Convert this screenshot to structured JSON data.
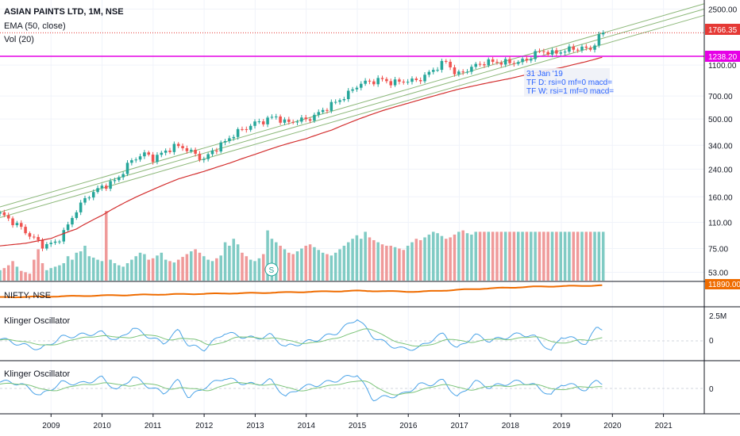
{
  "colors": {
    "up": "#26a69a",
    "down": "#ef5350",
    "vol_up": "#80cbc4",
    "vol_down": "#ef9a9a",
    "ema": "#d32f2f",
    "channel": "#8db87a",
    "price_line": "#e53935",
    "magenta": "#e600e6",
    "nifty": "#ef6c00",
    "klinger": "#4aa3e8",
    "signal": "#7cc47a",
    "grid": "#f0f3fa",
    "axis": "#131722"
  },
  "header": {
    "title": "ASIAN PAINTS LTD, 1M, NSE",
    "ema_label": "EMA (50, close)",
    "vol_label": "Vol (20)"
  },
  "price_tags": {
    "last": "1766.35",
    "level": "1238.20"
  },
  "tooltip": {
    "date": "31 Jan '19",
    "tf_d": "TF D: rsi=0 mf=0 macd=",
    "tf_w": "TF W: rsi=1 mf=0 macd="
  },
  "volume_marker": "S",
  "nifty": {
    "label": "NIFTY, NSE",
    "value": "11890.00"
  },
  "klinger_1": {
    "label": "Klinger Oscillator",
    "ticks": [
      "2.5M",
      "0"
    ]
  },
  "klinger_2": {
    "label": "Klinger Oscillator",
    "ticks": [
      "0"
    ]
  },
  "chart_data": {
    "type": "candlestick",
    "title": "ASIAN PAINTS LTD, 1M, NSE",
    "scale": "log",
    "ylim": [
      48,
      2600
    ],
    "y_ticks": [
      "2500.00",
      "1100.00",
      "700.00",
      "500.00",
      "340.00",
      "240.00",
      "160.00",
      "110.00",
      "75.00",
      "53.00"
    ],
    "y_tick_values": [
      2500,
      1100,
      700,
      500,
      340,
      240,
      160,
      110,
      75,
      53
    ],
    "x_ticks": [
      "2009",
      "2010",
      "2011",
      "2012",
      "2013",
      "2014",
      "2015",
      "2016",
      "2017",
      "2018",
      "2019",
      "2020",
      "2021"
    ],
    "x_range_years": [
      2008.0,
      2021.8
    ],
    "series_anchor_close": [
      [
        2008.0,
        125
      ],
      [
        2008.3,
        108
      ],
      [
        2008.6,
        90
      ],
      [
        2008.85,
        78
      ],
      [
        2009.1,
        82
      ],
      [
        2009.3,
        100
      ],
      [
        2009.5,
        132
      ],
      [
        2009.75,
        165
      ],
      [
        2010.0,
        185
      ],
      [
        2010.3,
        205
      ],
      [
        2010.5,
        255
      ],
      [
        2010.7,
        290
      ],
      [
        2010.85,
        300
      ],
      [
        2011.0,
        280
      ],
      [
        2011.2,
        305
      ],
      [
        2011.4,
        335
      ],
      [
        2011.6,
        330
      ],
      [
        2011.8,
        300
      ],
      [
        2012.0,
        275
      ],
      [
        2012.2,
        320
      ],
      [
        2012.4,
        355
      ],
      [
        2012.6,
        405
      ],
      [
        2012.8,
        435
      ],
      [
        2013.0,
        470
      ],
      [
        2013.2,
        490
      ],
      [
        2013.4,
        520
      ],
      [
        2013.6,
        470
      ],
      [
        2013.8,
        490
      ],
      [
        2014.0,
        495
      ],
      [
        2014.2,
        530
      ],
      [
        2014.4,
        590
      ],
      [
        2014.6,
        645
      ],
      [
        2014.8,
        710
      ],
      [
        2015.0,
        820
      ],
      [
        2015.2,
        860
      ],
      [
        2015.5,
        890
      ],
      [
        2015.7,
        845
      ],
      [
        2015.9,
        875
      ],
      [
        2016.1,
        870
      ],
      [
        2016.3,
        920
      ],
      [
        2016.6,
        1090
      ],
      [
        2016.75,
        1160
      ],
      [
        2016.95,
        940
      ],
      [
        2017.2,
        1050
      ],
      [
        2017.5,
        1150
      ],
      [
        2017.8,
        1150
      ],
      [
        2018.0,
        1140
      ],
      [
        2018.3,
        1170
      ],
      [
        2018.5,
        1320
      ],
      [
        2018.7,
        1350
      ],
      [
        2018.85,
        1290
      ],
      [
        2019.0,
        1350
      ],
      [
        2019.2,
        1390
      ],
      [
        2019.4,
        1420
      ],
      [
        2019.55,
        1360
      ],
      [
        2019.7,
        1600
      ],
      [
        2019.82,
        1766.35
      ]
    ],
    "ema_anchor": [
      [
        2008.0,
        78
      ],
      [
        2008.5,
        81
      ],
      [
        2009.0,
        87
      ],
      [
        2009.5,
        100
      ],
      [
        2010.0,
        122
      ],
      [
        2010.5,
        150
      ],
      [
        2011.0,
        178
      ],
      [
        2011.5,
        208
      ],
      [
        2012.0,
        232
      ],
      [
        2012.5,
        262
      ],
      [
        2013.0,
        298
      ],
      [
        2013.5,
        338
      ],
      [
        2014.0,
        375
      ],
      [
        2014.5,
        425
      ],
      [
        2015.0,
        495
      ],
      [
        2015.5,
        565
      ],
      [
        2016.0,
        630
      ],
      [
        2016.5,
        700
      ],
      [
        2017.0,
        775
      ],
      [
        2017.5,
        840
      ],
      [
        2018.0,
        905
      ],
      [
        2018.5,
        985
      ],
      [
        2019.0,
        1060
      ],
      [
        2019.5,
        1160
      ],
      [
        2019.82,
        1238.2
      ]
    ],
    "volume_profile": [
      0.15,
      0.18,
      0.22,
      0.28,
      0.2,
      0.14,
      0.12,
      0.1,
      0.3,
      0.45,
      0.25,
      0.15,
      0.18,
      0.2,
      0.22,
      0.25,
      0.35,
      0.3,
      0.4,
      0.42,
      0.5,
      0.35,
      0.33,
      0.3,
      0.28,
      1.0,
      0.3,
      0.25,
      0.22,
      0.2,
      0.25,
      0.3,
      0.35,
      0.4,
      0.38,
      0.3,
      0.32,
      0.36,
      0.4,
      0.3,
      0.28,
      0.26,
      0.3,
      0.34,
      0.38,
      0.42,
      0.45,
      0.4,
      0.35,
      0.3,
      0.28,
      0.32,
      0.36,
      0.55,
      0.5,
      0.6,
      0.52,
      0.4,
      0.35,
      0.3,
      0.28,
      0.32,
      0.38,
      0.72,
      0.6,
      0.55,
      0.5,
      0.45,
      0.4,
      0.38,
      0.42,
      0.46,
      0.5,
      0.52,
      0.48,
      0.44,
      0.4,
      0.38,
      0.36,
      0.4,
      0.45,
      0.5,
      0.55,
      0.6,
      0.65,
      0.6,
      0.7,
      0.62,
      0.58,
      0.55,
      0.52,
      0.5,
      0.5,
      0.48,
      0.46,
      0.44,
      0.5,
      0.55,
      0.6,
      0.58,
      0.62,
      0.66,
      0.7,
      0.68,
      0.64,
      0.6,
      0.62,
      0.66,
      0.7,
      0.72,
      0.68,
      0.66,
      0.7
    ],
    "channel_lines": [
      {
        "start": [
          2008.0,
          138
        ],
        "end": [
          2021.8,
          2700
        ]
      },
      {
        "start": [
          2008.0,
          128
        ],
        "end": [
          2021.8,
          2500
        ]
      },
      {
        "start": [
          2008.0,
          118
        ],
        "end": [
          2021.8,
          2280
        ]
      }
    ],
    "horizontal_levels": [
      1766.35,
      1238.2
    ],
    "nifty_anchor": [
      [
        2008.0,
        0.25
      ],
      [
        2009.0,
        0.3
      ],
      [
        2011.0,
        0.42
      ],
      [
        2013.0,
        0.52
      ],
      [
        2015.0,
        0.66
      ],
      [
        2016.2,
        0.6
      ],
      [
        2017.5,
        0.8
      ],
      [
        2018.5,
        0.92
      ],
      [
        2019.82,
        1.0
      ]
    ],
    "klinger_1_anchor": [
      [
        2008.0,
        0.1
      ],
      [
        2008.4,
        -0.15
      ],
      [
        2008.8,
        -0.35
      ],
      [
        2009.2,
        0.15
      ],
      [
        2009.6,
        0.25
      ],
      [
        2010.0,
        0.35
      ],
      [
        2010.3,
        0.0
      ],
      [
        2010.6,
        0.55
      ],
      [
        2010.9,
        0.2
      ],
      [
        2011.2,
        -0.1
      ],
      [
        2011.5,
        0.45
      ],
      [
        2011.7,
        -0.2
      ],
      [
        2012.0,
        -0.35
      ],
      [
        2012.4,
        0.35
      ],
      [
        2012.7,
        0.2
      ],
      [
        2013.0,
        0.1
      ],
      [
        2013.3,
        0.25
      ],
      [
        2013.6,
        -0.25
      ],
      [
        2013.9,
        -0.1
      ],
      [
        2014.2,
        0.05
      ],
      [
        2014.6,
        0.35
      ],
      [
        2015.0,
        0.95
      ],
      [
        2015.3,
        0.2
      ],
      [
        2015.6,
        -0.15
      ],
      [
        2015.9,
        -0.35
      ],
      [
        2016.2,
        -0.3
      ],
      [
        2016.5,
        0.1
      ],
      [
        2016.7,
        0.3
      ],
      [
        2016.95,
        -0.35
      ],
      [
        2017.3,
        0.25
      ],
      [
        2017.6,
        0.0
      ],
      [
        2017.9,
        0.15
      ],
      [
        2018.2,
        0.3
      ],
      [
        2018.5,
        0.15
      ],
      [
        2018.8,
        -0.45
      ],
      [
        2019.0,
        0.2
      ],
      [
        2019.3,
        0.05
      ],
      [
        2019.5,
        -0.15
      ],
      [
        2019.7,
        0.65
      ],
      [
        2019.82,
        0.5
      ]
    ],
    "klinger_2_anchor": [
      [
        2008.0,
        0.3
      ],
      [
        2008.4,
        0.2
      ],
      [
        2008.8,
        -0.3
      ],
      [
        2009.2,
        0.25
      ],
      [
        2009.6,
        0.2
      ],
      [
        2010.0,
        0.45
      ],
      [
        2010.3,
        -0.1
      ],
      [
        2010.6,
        0.5
      ],
      [
        2010.9,
        0.1
      ],
      [
        2011.2,
        -0.2
      ],
      [
        2011.5,
        0.35
      ],
      [
        2011.7,
        -0.4
      ],
      [
        2012.0,
        0.05
      ],
      [
        2012.4,
        0.45
      ],
      [
        2012.7,
        0.25
      ],
      [
        2013.0,
        0.15
      ],
      [
        2013.3,
        0.35
      ],
      [
        2013.6,
        -0.35
      ],
      [
        2013.9,
        0.05
      ],
      [
        2014.2,
        0.15
      ],
      [
        2014.6,
        0.35
      ],
      [
        2015.0,
        0.6
      ],
      [
        2015.3,
        -0.45
      ],
      [
        2015.6,
        -0.35
      ],
      [
        2015.9,
        -0.25
      ],
      [
        2016.2,
        0.15
      ],
      [
        2016.5,
        0.2
      ],
      [
        2016.7,
        0.35
      ],
      [
        2016.95,
        -0.4
      ],
      [
        2017.3,
        0.3
      ],
      [
        2017.6,
        0.05
      ],
      [
        2017.9,
        0.2
      ],
      [
        2018.2,
        0.3
      ],
      [
        2018.5,
        0.1
      ],
      [
        2018.8,
        -0.3
      ],
      [
        2019.0,
        0.2
      ],
      [
        2019.3,
        0.1
      ],
      [
        2019.5,
        -0.1
      ],
      [
        2019.7,
        0.4
      ],
      [
        2019.82,
        0.2
      ]
    ]
  }
}
